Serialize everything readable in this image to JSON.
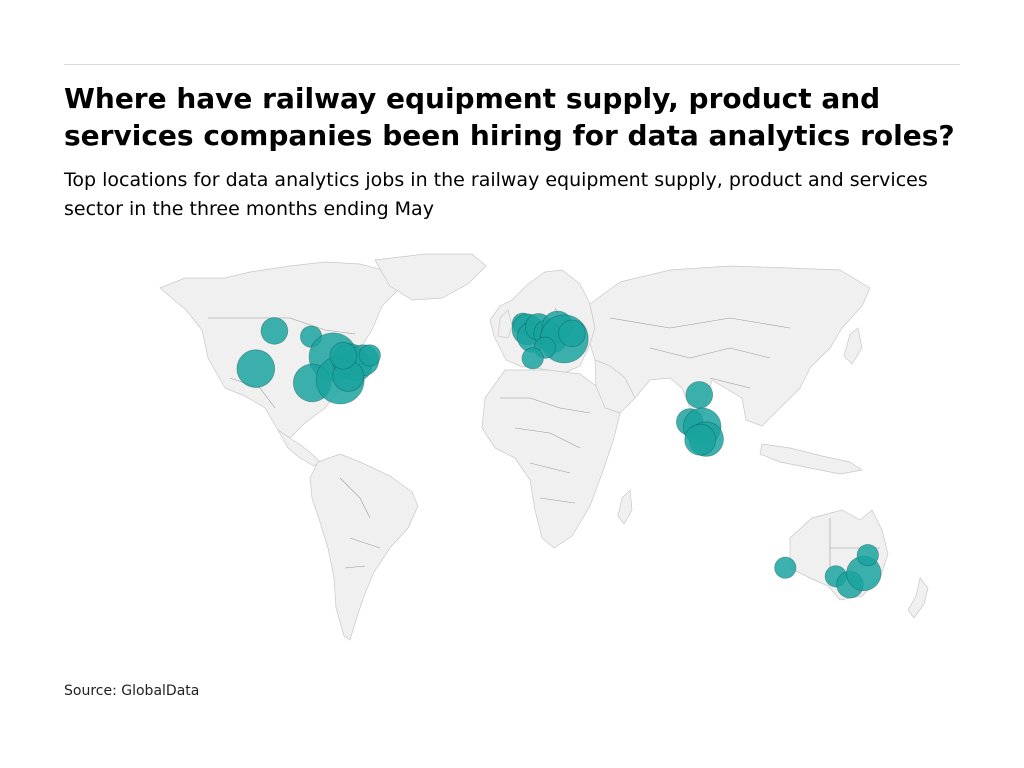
{
  "title": "Where have railway equipment supply, product and services companies been hiring for data analytics roles?",
  "subtitle": "Top locations for data analytics jobs in the railway equipment supply, product and services sector in the three months ending May",
  "source": "Source: GlobalData",
  "colors": {
    "bubble": "#1aa39f",
    "bubble_dark": "#0a3b3a",
    "land": "#f0f0f0",
    "border": "#a0a0a0"
  },
  "map_data": {
    "type": "bubble-map",
    "projection": "equirectangular",
    "bubbles": [
      {
        "lon": -122.4,
        "lat": 37.8,
        "size": 5
      },
      {
        "lon": -114.0,
        "lat": 51.0,
        "size": 2
      },
      {
        "lon": -97.5,
        "lat": 49.0,
        "size": 1
      },
      {
        "lon": -87.6,
        "lat": 41.9,
        "size": 9
      },
      {
        "lon": -97.0,
        "lat": 32.8,
        "size": 5
      },
      {
        "lon": -84.4,
        "lat": 33.8,
        "size": 9
      },
      {
        "lon": -80.0,
        "lat": 40.4,
        "size": 4
      },
      {
        "lon": -77.0,
        "lat": 38.9,
        "size": 3
      },
      {
        "lon": -74.0,
        "lat": 40.7,
        "size": 3
      },
      {
        "lon": -71.1,
        "lat": 42.4,
        "size": 1
      },
      {
        "lon": -80.8,
        "lat": 35.2,
        "size": 3
      },
      {
        "lon": -83.0,
        "lat": 42.3,
        "size": 2
      },
      {
        "lon": -2.2,
        "lat": 53.5,
        "size": 1
      },
      {
        "lon": -0.1,
        "lat": 51.5,
        "size": 3
      },
      {
        "lon": 2.3,
        "lat": 48.9,
        "size": 3
      },
      {
        "lon": 4.9,
        "lat": 52.4,
        "size": 2
      },
      {
        "lon": 8.7,
        "lat": 50.1,
        "size": 2
      },
      {
        "lon": 11.6,
        "lat": 48.1,
        "size": 2
      },
      {
        "lon": 13.4,
        "lat": 52.5,
        "size": 3
      },
      {
        "lon": 16.4,
        "lat": 48.2,
        "size": 9
      },
      {
        "lon": 19.9,
        "lat": 50.1,
        "size": 2
      },
      {
        "lon": 7.7,
        "lat": 45.1,
        "size": 1
      },
      {
        "lon": 2.2,
        "lat": 41.4,
        "size": 1
      },
      {
        "lon": 77.2,
        "lat": 28.6,
        "size": 2
      },
      {
        "lon": 72.9,
        "lat": 19.1,
        "size": 2
      },
      {
        "lon": 78.5,
        "lat": 17.4,
        "size": 5
      },
      {
        "lon": 80.3,
        "lat": 13.1,
        "size": 4
      },
      {
        "lon": 77.6,
        "lat": 12.9,
        "size": 3
      },
      {
        "lon": 115.9,
        "lat": -31.9,
        "size": 1
      },
      {
        "lon": 138.6,
        "lat": -34.9,
        "size": 1
      },
      {
        "lon": 145.0,
        "lat": -37.8,
        "size": 2
      },
      {
        "lon": 151.2,
        "lat": -33.9,
        "size": 4
      },
      {
        "lon": 153.0,
        "lat": -27.5,
        "size": 1
      }
    ]
  }
}
